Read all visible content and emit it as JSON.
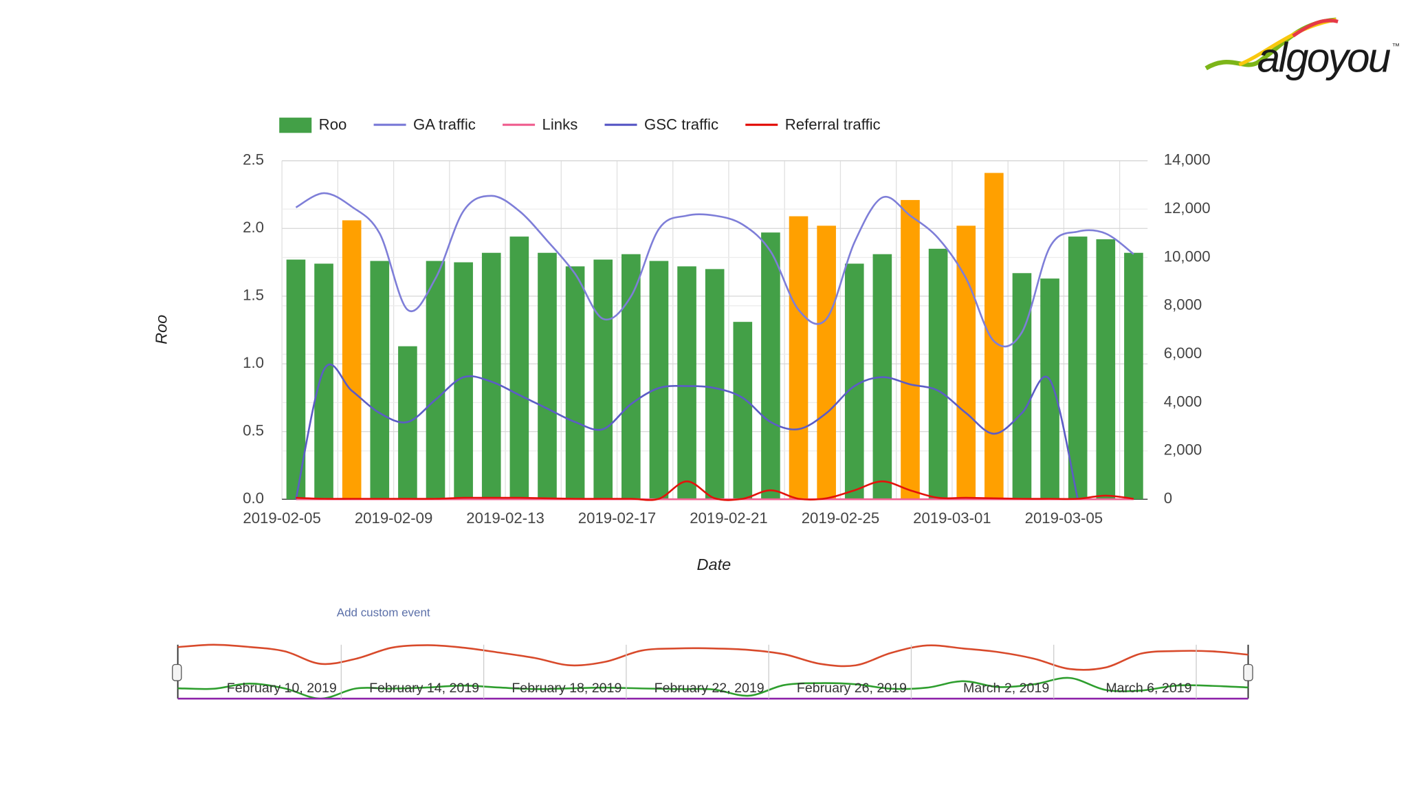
{
  "logo": {
    "text": "algoyou",
    "tm": "™"
  },
  "custom_event": "Add custom event",
  "chart_data": {
    "type": "bar",
    "xlabel": "Date",
    "ylabel": "Roo",
    "categories": [
      "2019-02-05",
      null,
      null,
      null,
      "2019-02-09",
      null,
      null,
      null,
      "2019-02-13",
      null,
      null,
      null,
      "2019-02-17",
      null,
      null,
      null,
      "2019-02-21",
      null,
      null,
      null,
      "2019-02-25",
      null,
      null,
      null,
      "2019-03-01",
      null,
      null,
      null,
      "2019-03-05",
      null,
      null
    ],
    "ylim": [
      0,
      2.5
    ],
    "yticks": [
      {
        "value": 0,
        "label": "0.0"
      },
      0.5,
      {
        "value": 1,
        "label": "1.0"
      },
      1.5,
      {
        "value": 2,
        "label": "2.0"
      },
      2.5
    ],
    "y2lim": [
      0,
      14000
    ],
    "y2ticks": [
      0,
      {
        "value": 2000,
        "label": "2,000"
      },
      {
        "value": 4000,
        "label": "4,000"
      },
      {
        "value": 6000,
        "label": "6,000"
      },
      {
        "value": 8000,
        "label": "8,000"
      },
      {
        "value": 10000,
        "label": "10,000"
      },
      {
        "value": 12000,
        "label": "12,000"
      },
      {
        "value": 14000,
        "label": "14,000"
      }
    ],
    "grid": true,
    "legend": "top",
    "series": [
      {
        "name": "Roo",
        "type": "bar",
        "color": "#43a047",
        "colors": [
          "#43a047",
          "#43a047",
          "#ffa000",
          "#43a047",
          "#43a047",
          "#43a047",
          "#43a047",
          "#43a047",
          "#43a047",
          "#43a047",
          "#43a047",
          "#43a047",
          "#43a047",
          "#43a047",
          "#43a047",
          "#43a047",
          "#43a047",
          "#43a047",
          "#ffa000",
          "#ffa000",
          "#43a047",
          "#43a047",
          "#ffa000",
          "#43a047",
          "#ffa000",
          "#ffa000",
          "#43a047",
          "#43a047",
          "#43a047",
          "#43a047",
          "#43a047"
        ],
        "values": [
          1.77,
          1.74,
          2.06,
          1.76,
          1.13,
          1.76,
          1.75,
          1.82,
          1.94,
          1.82,
          1.72,
          1.77,
          1.81,
          1.76,
          1.72,
          1.7,
          1.31,
          1.97,
          2.09,
          2.02,
          1.74,
          1.81,
          2.21,
          1.85,
          2.02,
          2.41,
          1.67,
          1.63,
          1.94,
          1.92,
          1.82
        ]
      },
      {
        "name": "GA traffic",
        "type": "line",
        "axis": "y2",
        "color": "#7e7ed8",
        "values": [
          12070,
          12660,
          12100,
          10990,
          7835,
          9135,
          11920,
          12550,
          11920,
          10690,
          9320,
          7460,
          8390,
          11180,
          11730,
          11730,
          11360,
          10250,
          7835,
          7460,
          10620,
          12480,
          11730,
          10800,
          9135,
          6535,
          6905,
          10430,
          11070,
          10990,
          10140
        ]
      },
      {
        "name": "Links",
        "type": "line",
        "axis": "y2",
        "color": "#f06292",
        "values": [
          0,
          0,
          0,
          0,
          0,
          0,
          0,
          0,
          0,
          0,
          0,
          0,
          0,
          0,
          0,
          0,
          0,
          0,
          0,
          0,
          0,
          0,
          0,
          0,
          0,
          0,
          0,
          0,
          0,
          0,
          0
        ]
      },
      {
        "name": "GSC traffic",
        "type": "line",
        "axis": "y2",
        "color": "#5c5cc6",
        "values": [
          0,
          5350,
          4490,
          3565,
          3195,
          4120,
          5050,
          4865,
          4310,
          3750,
          3195,
          2900,
          3935,
          4600,
          4680,
          4600,
          4195,
          3195,
          2900,
          3565,
          4680,
          5050,
          4750,
          4490,
          3565,
          2710,
          3565,
          4940,
          0,
          null,
          null
        ]
      },
      {
        "name": "Referral traffic",
        "type": "line",
        "axis": "y2",
        "color": "#e3120b",
        "values": [
          60,
          20,
          20,
          20,
          20,
          20,
          60,
          60,
          60,
          40,
          20,
          20,
          20,
          20,
          740,
          40,
          20,
          370,
          20,
          40,
          370,
          740,
          370,
          60,
          60,
          40,
          20,
          20,
          20,
          150,
          20
        ]
      }
    ],
    "navigator": {
      "labels": [
        "February 10, 2019",
        "February 14, 2019",
        "February 18, 2019",
        "February 22, 2019",
        "February 26, 2019",
        "March 2, 2019",
        "March 6, 2019"
      ]
    }
  }
}
